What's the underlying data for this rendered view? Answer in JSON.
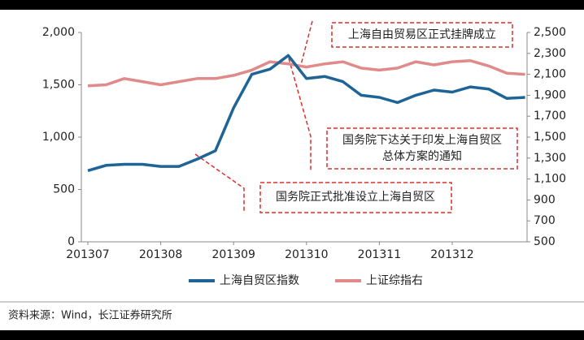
{
  "chart_data": {
    "type": "line",
    "categories": [
      "201307",
      null,
      null,
      null,
      "201308",
      null,
      null,
      null,
      "201309",
      null,
      null,
      null,
      "201310",
      null,
      null,
      null,
      "201311",
      null,
      null,
      null,
      "201312",
      null,
      null,
      null,
      null
    ],
    "series": [
      {
        "name": "上海自贸区指数",
        "color": "#1f6496",
        "axis": "y",
        "values": [
          680,
          730,
          740,
          740,
          720,
          720,
          790,
          870,
          1280,
          1600,
          1650,
          1780,
          1560,
          1580,
          1530,
          1400,
          1380,
          1330,
          1400,
          1450,
          1430,
          1480,
          1460,
          1370,
          1380
        ]
      },
      {
        "name": "上证综指右",
        "color": "#e08a8a",
        "axis": "y2",
        "values": [
          1990,
          2000,
          2060,
          2030,
          2000,
          2030,
          2060,
          2060,
          2090,
          2140,
          2220,
          2200,
          2170,
          2200,
          2220,
          2160,
          2140,
          2160,
          2220,
          2190,
          2220,
          2230,
          2180,
          2110,
          2100
        ]
      }
    ],
    "ylim": [
      0,
      2000
    ],
    "yticks": [
      0,
      500,
      {
        "value": 1000,
        "label": "1,000"
      },
      {
        "value": 1500,
        "label": "1,500"
      },
      {
        "value": 2000,
        "label": "2,000"
      }
    ],
    "y2lim": [
      500,
      2500
    ],
    "y2ticks": [
      500,
      700,
      900,
      {
        "value": 1100,
        "label": "1,100"
      },
      {
        "value": 1300,
        "label": "1,300"
      },
      {
        "value": 1500,
        "label": "1,500"
      },
      {
        "value": 1700,
        "label": "1,700"
      },
      {
        "value": 1900,
        "label": "1,900"
      },
      {
        "value": 2100,
        "label": "2,100"
      },
      {
        "value": 2300,
        "label": "2,300"
      },
      {
        "value": 2500,
        "label": "2,500"
      }
    ],
    "annotations": [
      [
        "上海自由贸易区正式挂牌成立"
      ],
      [
        "国务院下达关于印发上海自贸区",
        "总体方案的通知"
      ],
      [
        "国务院正式批准设立上海自贸区"
      ]
    ],
    "source": "资料来源：Wind，长江证券研究所"
  }
}
